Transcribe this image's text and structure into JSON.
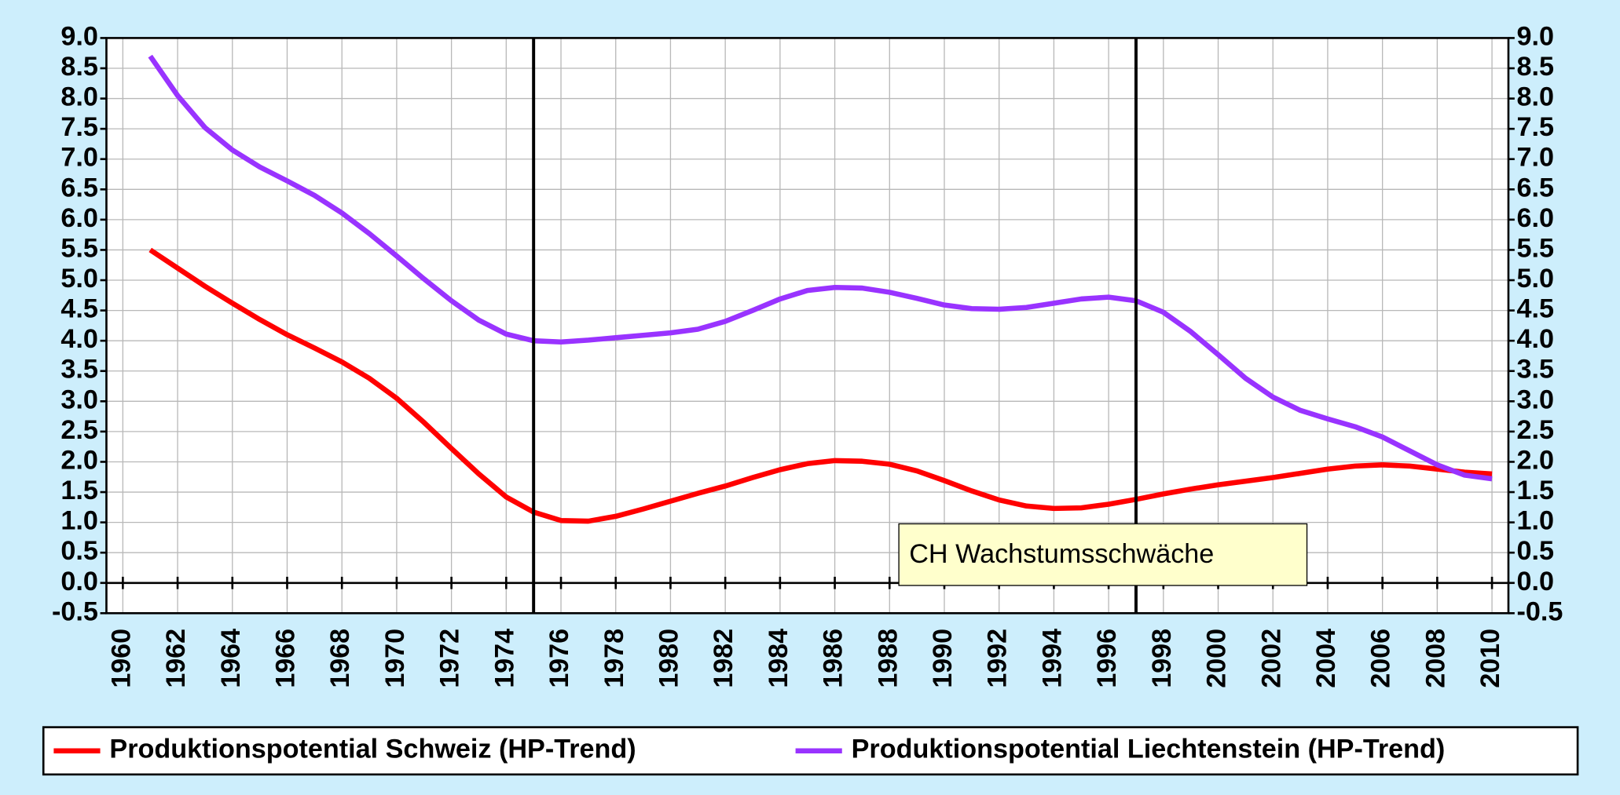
{
  "chart_data": {
    "type": "line",
    "x": [
      1961,
      1962,
      1963,
      1964,
      1965,
      1966,
      1967,
      1968,
      1969,
      1970,
      1971,
      1972,
      1973,
      1974,
      1975,
      1976,
      1977,
      1978,
      1979,
      1980,
      1981,
      1982,
      1983,
      1984,
      1985,
      1986,
      1987,
      1988,
      1989,
      1990,
      1991,
      1992,
      1993,
      1994,
      1995,
      1996,
      1997,
      1998,
      1999,
      2000,
      2001,
      2002,
      2003,
      2004,
      2005,
      2006,
      2007,
      2008,
      2009,
      2010
    ],
    "series": [
      {
        "name": "Produktionspotential Schweiz (HP-Trend)",
        "color": "#ff0000",
        "values": [
          5.5,
          5.2,
          4.9,
          4.62,
          4.35,
          4.1,
          3.88,
          3.65,
          3.38,
          3.05,
          2.65,
          2.22,
          1.8,
          1.42,
          1.17,
          1.03,
          1.02,
          1.1,
          1.22,
          1.35,
          1.48,
          1.6,
          1.74,
          1.87,
          1.97,
          2.02,
          2.01,
          1.96,
          1.85,
          1.69,
          1.52,
          1.37,
          1.27,
          1.23,
          1.24,
          1.3,
          1.38,
          1.47,
          1.55,
          1.62,
          1.68,
          1.74,
          1.81,
          1.88,
          1.93,
          1.95,
          1.93,
          1.88,
          1.83,
          1.8
        ]
      },
      {
        "name": "Produktionspotential Liechtenstein (HP-Trend)",
        "color": "#9933ff",
        "values": [
          8.7,
          8.05,
          7.52,
          7.15,
          6.87,
          6.64,
          6.4,
          6.11,
          5.77,
          5.4,
          5.02,
          4.66,
          4.34,
          4.11,
          4.0,
          3.98,
          4.01,
          4.05,
          4.09,
          4.13,
          4.19,
          4.32,
          4.5,
          4.69,
          4.83,
          4.88,
          4.87,
          4.8,
          4.7,
          4.59,
          4.53,
          4.52,
          4.55,
          4.62,
          4.69,
          4.72,
          4.66,
          4.47,
          4.15,
          3.77,
          3.38,
          3.07,
          2.85,
          2.71,
          2.58,
          2.41,
          2.18,
          1.95,
          1.78,
          1.72
        ]
      }
    ],
    "xlim": [
      1959.4,
      2010.6
    ],
    "xticks": [
      1960,
      1962,
      1964,
      1966,
      1968,
      1970,
      1972,
      1974,
      1976,
      1978,
      1980,
      1982,
      1984,
      1986,
      1988,
      1990,
      1992,
      1994,
      1996,
      1998,
      2000,
      2002,
      2004,
      2006,
      2008,
      2010
    ],
    "ylim": [
      -0.5,
      9.0
    ],
    "yticks": [
      -0.5,
      {
        "value": 0,
        "label": "0.0"
      },
      0.5,
      {
        "value": 1,
        "label": "1.0"
      },
      1.5,
      {
        "value": 2,
        "label": "2.0"
      },
      2.5,
      {
        "value": 3,
        "label": "3.0"
      },
      3.5,
      {
        "value": 4,
        "label": "4.0"
      },
      4.5,
      {
        "value": 5,
        "label": "5.0"
      },
      5.5,
      {
        "value": 6,
        "label": "6.0"
      },
      6.5,
      {
        "value": 7,
        "label": "7.0"
      },
      7.5,
      {
        "value": 8,
        "label": "8.0"
      },
      8.5,
      {
        "value": 9,
        "label": "9.0"
      }
    ],
    "y2lim": [
      -0.5,
      9.0
    ],
    "y2ticks": [
      -0.5,
      {
        "value": 0,
        "label": "0.0"
      },
      0.5,
      {
        "value": 1,
        "label": "1.0"
      },
      1.5,
      {
        "value": 2,
        "label": "2.0"
      },
      2.5,
      {
        "value": 3,
        "label": "3.0"
      },
      3.5,
      {
        "value": 4,
        "label": "4.0"
      },
      4.5,
      {
        "value": 5,
        "label": "5.0"
      },
      5.5,
      {
        "value": 6,
        "label": "6.0"
      },
      6.5,
      {
        "value": 7,
        "label": "7.0"
      },
      7.5,
      {
        "value": 8,
        "label": "8.0"
      },
      8.5,
      {
        "value": 9,
        "label": "9.0"
      }
    ],
    "vlines": [
      1975,
      1997
    ],
    "annotation": "CH Wachstumsschwäche",
    "grid": true,
    "legend": "bottom"
  }
}
